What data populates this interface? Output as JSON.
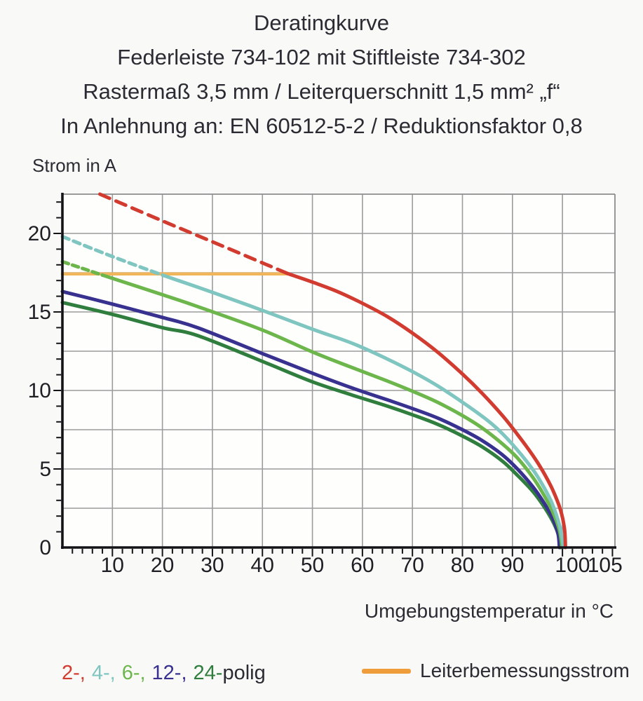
{
  "title": {
    "line1": "Deratingkurve",
    "line2": "Federleiste 734-102 mit Stiftleiste 734-302",
    "line3": "Rastermaß 3,5 mm / Leiterquerschnitt 1,5 mm² „f“",
    "line4": "In Anlehnung an: EN 60512-5-2 / Reduktionsfaktor 0,8"
  },
  "chart": {
    "y_axis_label": "Strom in A",
    "x_axis_label": "Umgebungstemperatur in °C"
  },
  "legend": {
    "poles": [
      {
        "label": "2-,",
        "color": "#d23b2f"
      },
      {
        "label": "4-,",
        "color": "#7fc5c0"
      },
      {
        "label": "6-,",
        "color": "#6cb64c"
      },
      {
        "label": "12-,",
        "color": "#38318f"
      },
      {
        "label": "24-",
        "color": "#2f7e3e"
      }
    ],
    "poles_suffix": "polig",
    "suffix_color": "#2b2b33",
    "rated_label": "Leiterbemessungsstrom",
    "rated_color": "#ef9d3a"
  },
  "chart_data": {
    "type": "line",
    "title": "Deratingkurve",
    "xlabel": "Umgebungstemperatur in °C",
    "ylabel": "Strom in A",
    "xlim": [
      0,
      110.5
    ],
    "ylim": [
      0,
      22.5
    ],
    "grid": true,
    "x_major_grid": 10,
    "y_major_grid": 2.5,
    "x_minor_tick": 2,
    "y_minor_tick": 1,
    "x_tick_labels": [
      10,
      20,
      30,
      40,
      50,
      60,
      70,
      80,
      90,
      100,
      105
    ],
    "y_tick_labels": [
      0,
      5,
      10,
      15,
      20
    ],
    "grid_color": "#9c9c9c",
    "frame_color": "#8d8d8d",
    "axis_color": "#141418",
    "tick_label_color": "#1e1e24",
    "rated_line": {
      "label": "Leiterbemessungsstrom",
      "y": 17.42,
      "x_range": [
        0,
        45.4
      ],
      "color": "#f1b55a"
    },
    "series": [
      {
        "name": "2-polig",
        "color": "#d23b2f",
        "dash_pattern": "15 10",
        "dashed": [
          [
            7.5,
            22.5
          ],
          [
            20,
            20.8
          ],
          [
            32,
            19.2
          ],
          [
            45,
            17.45
          ]
        ],
        "solid": [
          [
            45,
            17.45
          ],
          [
            50,
            16.9
          ],
          [
            55,
            16.3
          ],
          [
            60,
            15.55
          ],
          [
            65,
            14.7
          ],
          [
            70,
            13.65
          ],
          [
            75,
            12.45
          ],
          [
            80,
            11.05
          ],
          [
            84,
            9.8
          ],
          [
            88,
            8.4
          ],
          [
            91,
            7.2
          ],
          [
            94,
            5.9
          ],
          [
            96,
            4.9
          ],
          [
            98,
            3.7
          ],
          [
            99.6,
            2.4
          ],
          [
            100.4,
            1.2
          ],
          [
            100.6,
            0
          ]
        ]
      },
      {
        "name": "4-polig",
        "color": "#7fc5c0",
        "dash_pattern": "10 7",
        "dashed": [
          [
            0,
            19.8
          ],
          [
            7,
            18.9
          ],
          [
            14,
            18.05
          ],
          [
            20,
            17.35
          ]
        ],
        "solid": [
          [
            20,
            17.35
          ],
          [
            30,
            16.25
          ],
          [
            40,
            15.1
          ],
          [
            50,
            13.9
          ],
          [
            58,
            13.0
          ],
          [
            65,
            12.0
          ],
          [
            70,
            11.2
          ],
          [
            75,
            10.3
          ],
          [
            80,
            9.25
          ],
          [
            85,
            8.1
          ],
          [
            88,
            7.25
          ],
          [
            91,
            6.2
          ],
          [
            94,
            5.0
          ],
          [
            96,
            4.0
          ],
          [
            98,
            2.75
          ],
          [
            99.5,
            1.3
          ],
          [
            100.2,
            0
          ]
        ]
      },
      {
        "name": "6-polig",
        "color": "#6cb64c",
        "dash_pattern": "9 6",
        "dashed": [
          [
            0,
            18.2
          ],
          [
            8,
            17.35
          ]
        ],
        "solid": [
          [
            8,
            17.35
          ],
          [
            20,
            16.1
          ],
          [
            27,
            15.35
          ],
          [
            40,
            13.85
          ],
          [
            50,
            12.45
          ],
          [
            58,
            11.45
          ],
          [
            65,
            10.6
          ],
          [
            70,
            9.95
          ],
          [
            75,
            9.25
          ],
          [
            80,
            8.4
          ],
          [
            84,
            7.6
          ],
          [
            88,
            6.6
          ],
          [
            91,
            5.7
          ],
          [
            94,
            4.5
          ],
          [
            96,
            3.5
          ],
          [
            98,
            2.3
          ],
          [
            99.4,
            1.1
          ],
          [
            99.9,
            0
          ]
        ]
      },
      {
        "name": "12-polig",
        "color": "#38318f",
        "dash_pattern": "",
        "dashed": [],
        "solid": [
          [
            0,
            16.3
          ],
          [
            10,
            15.5
          ],
          [
            20,
            14.65
          ],
          [
            27,
            14.0
          ],
          [
            40,
            12.35
          ],
          [
            50,
            11.1
          ],
          [
            58,
            10.15
          ],
          [
            65,
            9.4
          ],
          [
            70,
            8.85
          ],
          [
            75,
            8.25
          ],
          [
            80,
            7.5
          ],
          [
            84,
            6.8
          ],
          [
            88,
            5.9
          ],
          [
            91,
            5.0
          ],
          [
            94,
            3.9
          ],
          [
            96,
            3.0
          ],
          [
            98,
            1.9
          ],
          [
            99.1,
            0.9
          ],
          [
            99.4,
            0
          ]
        ]
      },
      {
        "name": "24-polig",
        "color": "#2f7e3e",
        "dash_pattern": "",
        "dashed": [],
        "solid": [
          [
            0,
            15.6
          ],
          [
            10,
            14.85
          ],
          [
            20,
            14.0
          ],
          [
            27,
            13.5
          ],
          [
            40,
            11.85
          ],
          [
            50,
            10.55
          ],
          [
            58,
            9.7
          ],
          [
            65,
            9.0
          ],
          [
            70,
            8.45
          ],
          [
            75,
            7.85
          ],
          [
            80,
            7.1
          ],
          [
            84,
            6.4
          ],
          [
            88,
            5.5
          ],
          [
            91,
            4.6
          ],
          [
            94,
            3.6
          ],
          [
            96,
            2.75
          ],
          [
            98,
            1.7
          ],
          [
            99.2,
            0.8
          ],
          [
            99.6,
            0
          ]
        ]
      }
    ]
  }
}
